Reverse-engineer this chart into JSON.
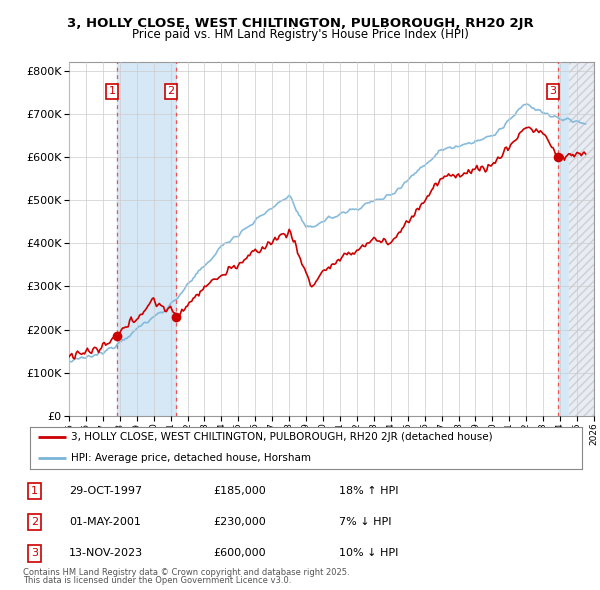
{
  "title": "3, HOLLY CLOSE, WEST CHILTINGTON, PULBOROUGH, RH20 2JR",
  "subtitle": "Price paid vs. HM Land Registry's House Price Index (HPI)",
  "legend_line1": "3, HOLLY CLOSE, WEST CHILTINGTON, PULBOROUGH, RH20 2JR (detached house)",
  "legend_line2": "HPI: Average price, detached house, Horsham",
  "transactions": [
    {
      "num": 1,
      "date": "29-OCT-1997",
      "price": 185000,
      "pct": "18%",
      "dir": "↑",
      "year": 1997.83
    },
    {
      "num": 2,
      "date": "01-MAY-2001",
      "price": 230000,
      "pct": "7%",
      "dir": "↓",
      "year": 2001.33
    },
    {
      "num": 3,
      "date": "13-NOV-2023",
      "price": 600000,
      "pct": "10%",
      "dir": "↓",
      "year": 2023.87
    }
  ],
  "footnote1": "Contains HM Land Registry data © Crown copyright and database right 2025.",
  "footnote2": "This data is licensed under the Open Government Licence v3.0.",
  "hpi_color": "#7ab4d8",
  "price_color": "#cc0000",
  "vline_color": "#ee4444",
  "shade_color": "#d6e8f5",
  "background_color": "#ffffff",
  "grid_color": "#cccccc",
  "ylim": [
    0,
    820000
  ],
  "xmin": 1995,
  "xmax": 2026,
  "yticks": [
    0,
    100000,
    200000,
    300000,
    400000,
    500000,
    600000,
    700000,
    800000
  ]
}
